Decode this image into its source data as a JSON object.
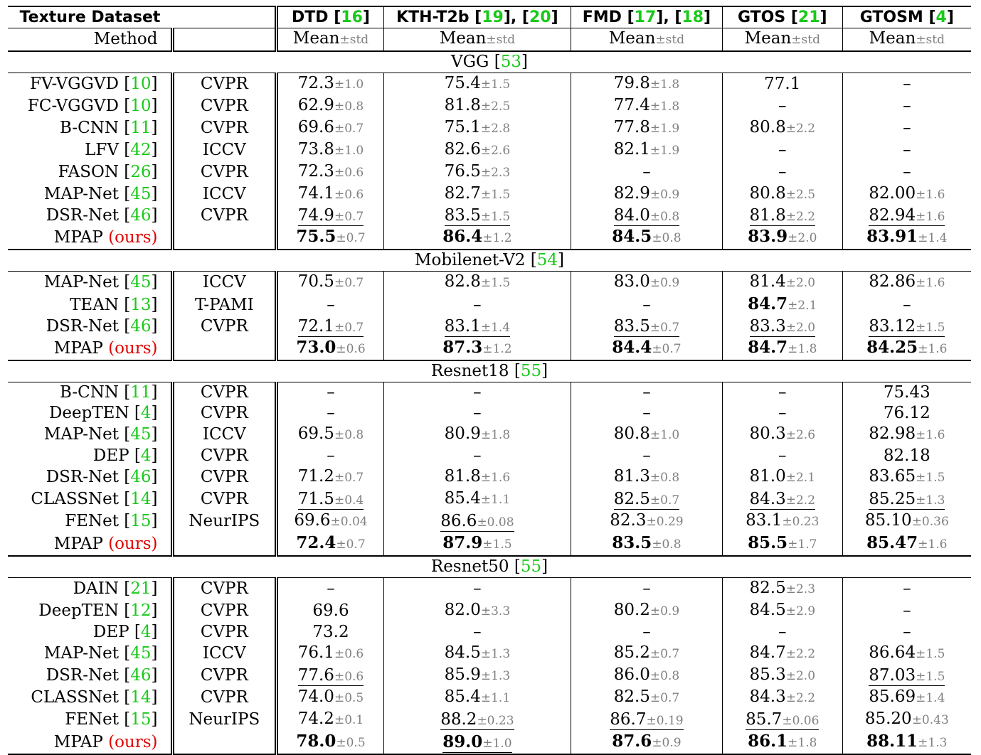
{
  "header": {
    "texture_dataset": "Texture Dataset",
    "method": "Method",
    "mean_label": "Mean",
    "std_label": "±std",
    "datasets": [
      {
        "name": "DTD",
        "refs": [
          "16"
        ]
      },
      {
        "name": "KTH-T2b",
        "refs": [
          "19",
          "20"
        ]
      },
      {
        "name": "FMD",
        "refs": [
          "17",
          "18"
        ]
      },
      {
        "name": "GTOS",
        "refs": [
          "21"
        ]
      },
      {
        "name": "GTOSM",
        "refs": [
          "4"
        ]
      }
    ]
  },
  "colors": {
    "ref": "#19c919",
    "ours": "#e00000",
    "std": "#808080"
  },
  "sections": [
    {
      "name": "VGG",
      "ref": "53",
      "rows": [
        {
          "method": "FV-VGGVD",
          "ref": "10",
          "venue": "CVPR",
          "cells": [
            {
              "m": "72.3",
              "s": "±1.0"
            },
            {
              "m": "75.4",
              "s": "±1.5"
            },
            {
              "m": "79.8",
              "s": "±1.8"
            },
            {
              "m": "77.1"
            },
            {
              "m": "–"
            }
          ]
        },
        {
          "method": "FC-VGGVD",
          "ref": "10",
          "venue": "CVPR",
          "cells": [
            {
              "m": "62.9",
              "s": "±0.8"
            },
            {
              "m": "81.8",
              "s": "±2.5"
            },
            {
              "m": "77.4",
              "s": "±1.8"
            },
            {
              "m": "–"
            },
            {
              "m": "–"
            }
          ]
        },
        {
          "method": "B-CNN",
          "ref": "11",
          "venue": "CVPR",
          "cells": [
            {
              "m": "69.6",
              "s": "±0.7"
            },
            {
              "m": "75.1",
              "s": "±2.8"
            },
            {
              "m": "77.8",
              "s": "±1.9"
            },
            {
              "m": "80.8",
              "s": "±2.2"
            },
            {
              "m": "–"
            }
          ]
        },
        {
          "method": "LFV",
          "ref": "42",
          "venue": "ICCV",
          "cells": [
            {
              "m": "73.8",
              "s": "±1.0"
            },
            {
              "m": "82.6",
              "s": "±2.6"
            },
            {
              "m": "82.1",
              "s": "±1.9"
            },
            {
              "m": "–"
            },
            {
              "m": "–"
            }
          ]
        },
        {
          "method": "FASON",
          "ref": "26",
          "venue": "CVPR",
          "cells": [
            {
              "m": "72.3",
              "s": "±0.6"
            },
            {
              "m": "76.5",
              "s": "±2.3"
            },
            {
              "m": "–"
            },
            {
              "m": "–"
            },
            {
              "m": "–"
            }
          ]
        },
        {
          "method": "MAP-Net",
          "ref": "45",
          "venue": "ICCV",
          "cells": [
            {
              "m": "74.1",
              "s": "±0.6"
            },
            {
              "m": "82.7",
              "s": "±1.5"
            },
            {
              "m": "82.9",
              "s": "±0.9"
            },
            {
              "m": "80.8",
              "s": "±2.5"
            },
            {
              "m": "82.00",
              "s": "±1.6"
            }
          ]
        },
        {
          "method": "DSR-Net",
          "ref": "46",
          "venue": "CVPR",
          "cells": [
            {
              "m": "74.9",
              "s": "±0.7",
              "u": true
            },
            {
              "m": "83.5",
              "s": "±1.5",
              "u": true
            },
            {
              "m": "84.0",
              "s": "±0.8",
              "u": true
            },
            {
              "m": "81.8",
              "s": "±2.2",
              "u": true
            },
            {
              "m": "82.94",
              "s": "±1.6",
              "u": true
            }
          ]
        },
        {
          "method": "MPAP",
          "ours": "(ours)",
          "venue": "",
          "cells": [
            {
              "m": "75.5",
              "s": "±0.7",
              "b": true
            },
            {
              "m": "86.4",
              "s": "±1.2",
              "b": true
            },
            {
              "m": "84.5",
              "s": "±0.8",
              "b": true
            },
            {
              "m": "83.9",
              "s": "±2.0",
              "b": true
            },
            {
              "m": "83.91",
              "s": "±1.4",
              "b": true
            }
          ]
        }
      ]
    },
    {
      "name": "Mobilenet-V2",
      "ref": "54",
      "rows": [
        {
          "method": "MAP-Net",
          "ref": "45",
          "venue": "ICCV",
          "cells": [
            {
              "m": "70.5",
              "s": "±0.7"
            },
            {
              "m": "82.8",
              "s": "±1.5"
            },
            {
              "m": "83.0",
              "s": "±0.9"
            },
            {
              "m": "81.4",
              "s": "±2.0"
            },
            {
              "m": "82.86",
              "s": "±1.6"
            }
          ]
        },
        {
          "method": "TEAN",
          "ref": "13",
          "venue": "T-PAMI",
          "cells": [
            {
              "m": "–"
            },
            {
              "m": "–"
            },
            {
              "m": "–"
            },
            {
              "m": "84.7",
              "s": "±2.1",
              "b": true
            },
            {
              "m": "–"
            }
          ]
        },
        {
          "method": "DSR-Net",
          "ref": "46",
          "venue": "CVPR",
          "cells": [
            {
              "m": "72.1",
              "s": "±0.7",
              "u": true
            },
            {
              "m": "83.1",
              "s": "±1.4",
              "u": true
            },
            {
              "m": "83.5",
              "s": "±0.7",
              "u": true
            },
            {
              "m": "83.3",
              "s": "±2.0",
              "u": true
            },
            {
              "m": "83.12",
              "s": "±1.5",
              "u": true
            }
          ]
        },
        {
          "method": "MPAP",
          "ours": "(ours)",
          "venue": "",
          "cells": [
            {
              "m": "73.0",
              "s": "±0.6",
              "b": true
            },
            {
              "m": "87.3",
              "s": "±1.2",
              "b": true
            },
            {
              "m": "84.4",
              "s": "±0.7",
              "b": true
            },
            {
              "m": "84.7",
              "s": "±1.8",
              "b": true
            },
            {
              "m": "84.25",
              "s": "±1.6",
              "b": true
            }
          ]
        }
      ]
    },
    {
      "name": "Resnet18",
      "ref": "55",
      "rows": [
        {
          "method": "B-CNN",
          "ref": "11",
          "venue": "CVPR",
          "cells": [
            {
              "m": "–"
            },
            {
              "m": "–"
            },
            {
              "m": "–"
            },
            {
              "m": "–"
            },
            {
              "m": "75.43"
            }
          ]
        },
        {
          "method": "DeepTEN",
          "ref": "4",
          "venue": "CVPR",
          "cells": [
            {
              "m": "–"
            },
            {
              "m": "–"
            },
            {
              "m": "–"
            },
            {
              "m": "–"
            },
            {
              "m": "76.12"
            }
          ]
        },
        {
          "method": "MAP-Net",
          "ref": "45",
          "venue": "ICCV",
          "cells": [
            {
              "m": "69.5",
              "s": "±0.8"
            },
            {
              "m": "80.9",
              "s": "±1.8"
            },
            {
              "m": "80.8",
              "s": "±1.0"
            },
            {
              "m": "80.3",
              "s": "±2.6"
            },
            {
              "m": "82.98",
              "s": "±1.6"
            }
          ]
        },
        {
          "method": "DEP",
          "ref": "4",
          "venue": "CVPR",
          "cells": [
            {
              "m": "–"
            },
            {
              "m": "–"
            },
            {
              "m": "–"
            },
            {
              "m": "–"
            },
            {
              "m": "82.18"
            }
          ]
        },
        {
          "method": "DSR-Net",
          "ref": "46",
          "venue": "CVPR",
          "cells": [
            {
              "m": "71.2",
              "s": "±0.7"
            },
            {
              "m": "81.8",
              "s": "±1.6"
            },
            {
              "m": "81.3",
              "s": "±0.8"
            },
            {
              "m": "81.0",
              "s": "±2.1"
            },
            {
              "m": "83.65",
              "s": "±1.5"
            }
          ]
        },
        {
          "method": "CLASSNet",
          "ref": "14",
          "venue": "CVPR",
          "cells": [
            {
              "m": "71.5",
              "s": "±0.4",
              "u": true
            },
            {
              "m": "85.4",
              "s": "±1.1"
            },
            {
              "m": "82.5",
              "s": "±0.7",
              "u": true
            },
            {
              "m": "84.3",
              "s": "±2.2",
              "u": true
            },
            {
              "m": "85.25",
              "s": "±1.3",
              "u": true
            }
          ]
        },
        {
          "method": "FENet",
          "ref": "15",
          "venue": "NeurIPS",
          "cells": [
            {
              "m": "69.6",
              "s": "±0.04"
            },
            {
              "m": "86.6",
              "s": "±0.08",
              "u": true
            },
            {
              "m": "82.3",
              "s": "±0.29"
            },
            {
              "m": "83.1",
              "s": "±0.23"
            },
            {
              "m": "85.10",
              "s": "±0.36"
            }
          ]
        },
        {
          "method": "MPAP",
          "ours": "(ours)",
          "venue": "",
          "cells": [
            {
              "m": "72.4",
              "s": "±0.7",
              "b": true
            },
            {
              "m": "87.9",
              "s": "±1.5",
              "b": true
            },
            {
              "m": "83.5",
              "s": "±0.8",
              "b": true
            },
            {
              "m": "85.5",
              "s": "±1.7",
              "b": true
            },
            {
              "m": "85.47",
              "s": "±1.6",
              "b": true
            }
          ]
        }
      ]
    },
    {
      "name": "Resnet50",
      "ref": "55",
      "rows": [
        {
          "method": "DAIN",
          "ref": "21",
          "venue": "CVPR",
          "cells": [
            {
              "m": "–"
            },
            {
              "m": "–"
            },
            {
              "m": "–"
            },
            {
              "m": "82.5",
              "s": "±2.3"
            },
            {
              "m": "–"
            }
          ]
        },
        {
          "method": "DeepTEN",
          "ref": "12",
          "venue": "CVPR",
          "cells": [
            {
              "m": "69.6"
            },
            {
              "m": "82.0",
              "s": "±3.3"
            },
            {
              "m": "80.2",
              "s": "±0.9"
            },
            {
              "m": "84.5",
              "s": "±2.9"
            },
            {
              "m": "–"
            }
          ]
        },
        {
          "method": "DEP",
          "ref": "4",
          "venue": "CVPR",
          "cells": [
            {
              "m": "73.2"
            },
            {
              "m": "–"
            },
            {
              "m": "–"
            },
            {
              "m": "–"
            },
            {
              "m": "–"
            }
          ]
        },
        {
          "method": "MAP-Net",
          "ref": "45",
          "venue": "ICCV",
          "cells": [
            {
              "m": "76.1",
              "s": "±0.6"
            },
            {
              "m": "84.5",
              "s": "±1.3"
            },
            {
              "m": "85.2",
              "s": "±0.7"
            },
            {
              "m": "84.7",
              "s": "±2.2"
            },
            {
              "m": "86.64",
              "s": "±1.5"
            }
          ]
        },
        {
          "method": "DSR-Net",
          "ref": "46",
          "venue": "CVPR",
          "cells": [
            {
              "m": "77.6",
              "s": "±0.6",
              "u": true
            },
            {
              "m": "85.9",
              "s": "±1.3"
            },
            {
              "m": "86.0",
              "s": "±0.8"
            },
            {
              "m": "85.3",
              "s": "±2.0"
            },
            {
              "m": "87.03",
              "s": "±1.5",
              "u": true
            }
          ]
        },
        {
          "method": "CLASSNet",
          "ref": "14",
          "venue": "CVPR",
          "cells": [
            {
              "m": "74.0",
              "s": "±0.5"
            },
            {
              "m": "85.4",
              "s": "±1.1"
            },
            {
              "m": "82.5",
              "s": "±0.7"
            },
            {
              "m": "84.3",
              "s": "±2.2"
            },
            {
              "m": "85.69",
              "s": "±1.4"
            }
          ]
        },
        {
          "method": "FENet",
          "ref": "15",
          "venue": "NeurIPS",
          "cells": [
            {
              "m": "74.2",
              "s": "±0.1"
            },
            {
              "m": "88.2",
              "s": "±0.23",
              "u": true
            },
            {
              "m": "86.7",
              "s": "±0.19",
              "u": true
            },
            {
              "m": "85.7",
              "s": "±0.06",
              "u": true
            },
            {
              "m": "85.20",
              "s": "±0.43"
            }
          ]
        },
        {
          "method": "MPAP",
          "ours": "(ours)",
          "venue": "",
          "cells": [
            {
              "m": "78.0",
              "s": "±0.5",
              "b": true
            },
            {
              "m": "89.0",
              "s": "±1.0",
              "b": true,
              "u": true
            },
            {
              "m": "87.6",
              "s": "±0.9",
              "b": true
            },
            {
              "m": "86.1",
              "s": "±1.8",
              "b": true
            },
            {
              "m": "88.11",
              "s": "±1.3",
              "b": true
            }
          ]
        }
      ]
    }
  ]
}
